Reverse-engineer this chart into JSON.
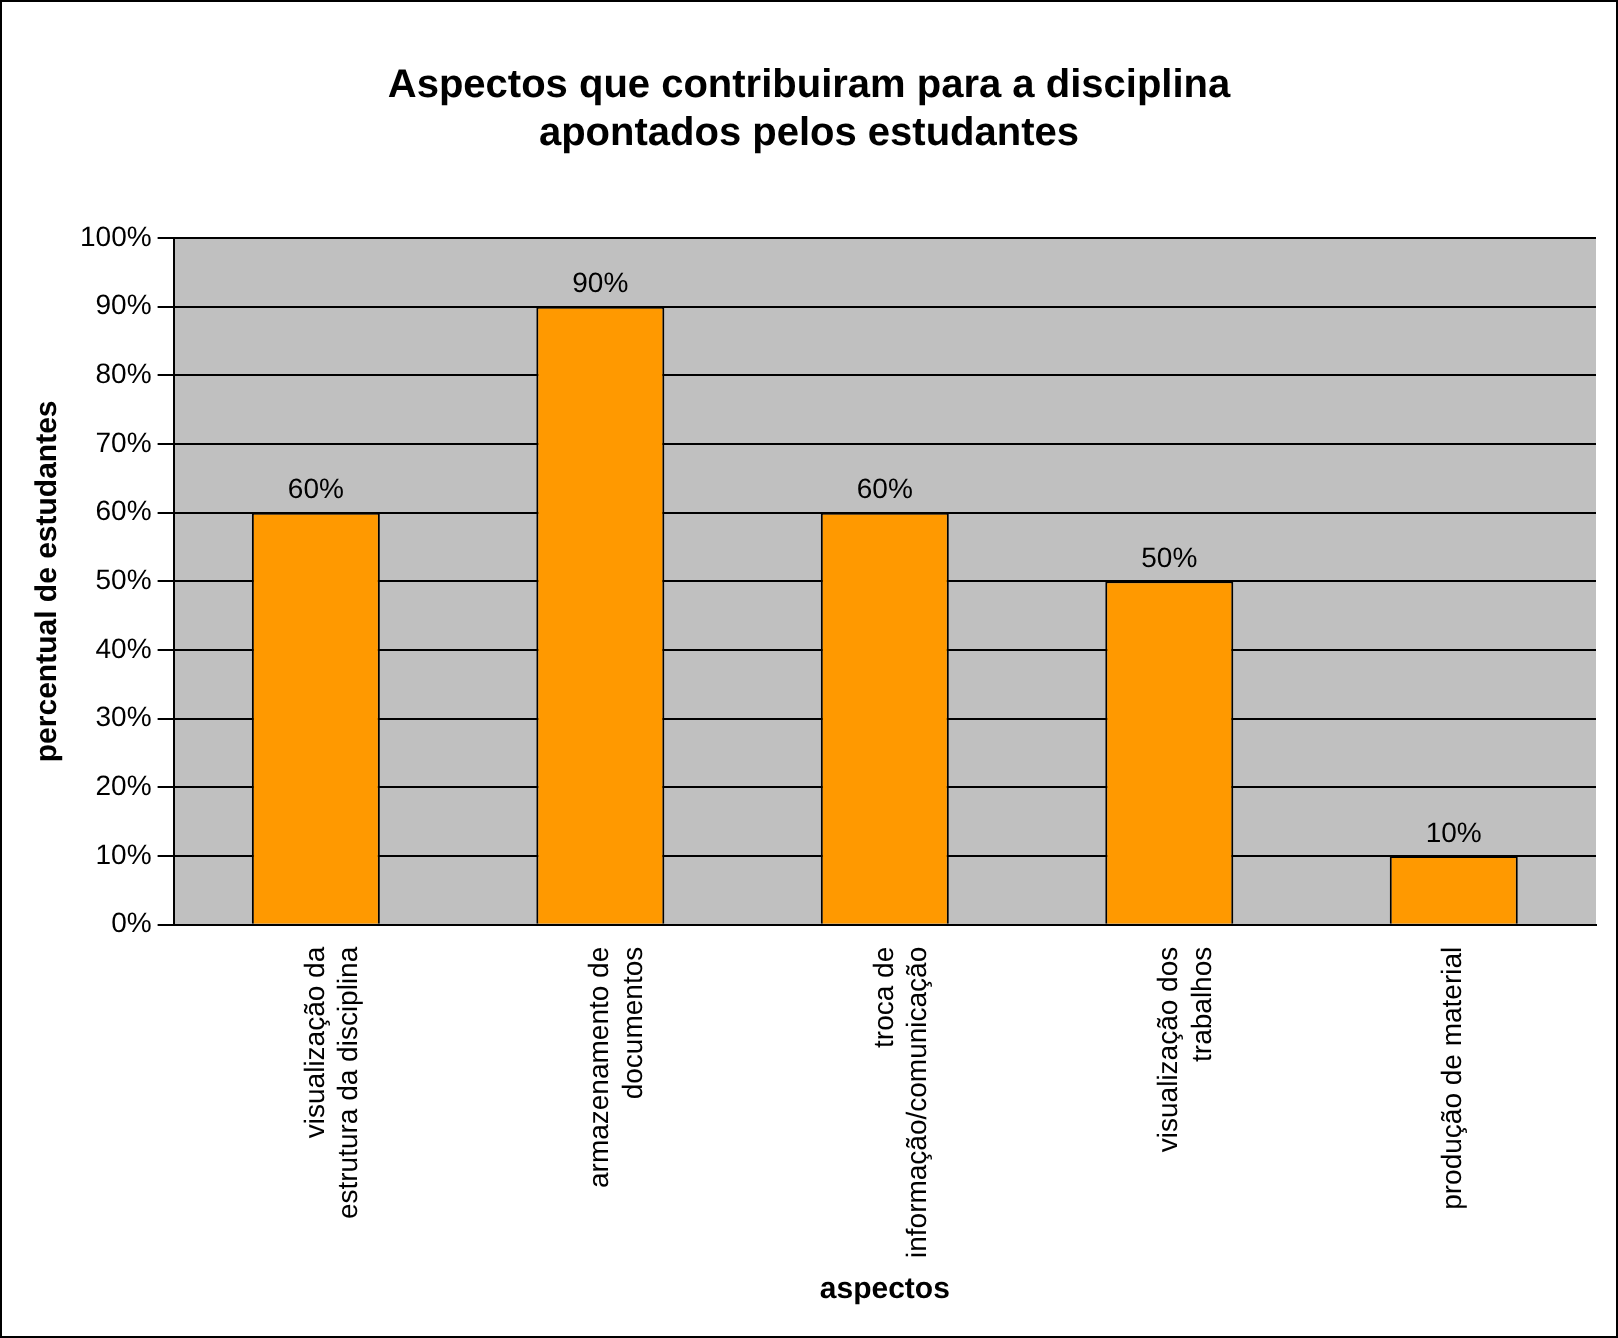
{
  "chart_data": {
    "type": "bar",
    "title": "Aspectos que contribuiram para a disciplina apontados pelos estudantes",
    "xlabel": "aspectos",
    "ylabel": "percentual de estudantes",
    "categories": [
      "visualização da estrutura da disciplina",
      "armazenamento de documentos",
      "troca de informação/comunicação",
      "visualização dos trabalhos",
      "produção de material"
    ],
    "values": [
      60,
      90,
      60,
      50,
      10
    ],
    "color": "#ff9900",
    "value_labels": [
      "60%",
      "90%",
      "60%",
      "50%",
      "10%"
    ],
    "ylim": [
      0,
      100
    ],
    "yticks": [
      {
        "value": 0,
        "label": "0%"
      },
      {
        "value": 10,
        "label": "10%"
      },
      {
        "value": 20,
        "label": "20%"
      },
      {
        "value": 30,
        "label": "30%"
      },
      {
        "value": 40,
        "label": "40%"
      },
      {
        "value": 50,
        "label": "50%"
      },
      {
        "value": 60,
        "label": "60%"
      },
      {
        "value": 70,
        "label": "70%"
      },
      {
        "value": 80,
        "label": "80%"
      },
      {
        "value": 90,
        "label": "90%"
      },
      {
        "value": 100,
        "label": "100%"
      }
    ],
    "grid": "y",
    "legend": false
  }
}
